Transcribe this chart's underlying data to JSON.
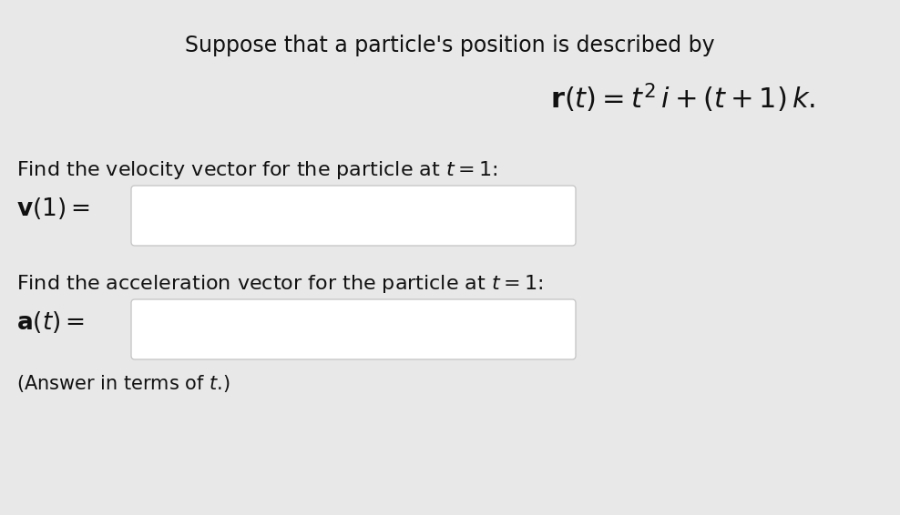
{
  "background_color": "#e8e8e8",
  "text_color": "#111111",
  "box_color": "#ffffff",
  "box_edge_color": "#c8c8c8",
  "title_fontsize": 17,
  "body_fontsize": 16,
  "formula_fontsize": 19,
  "label_fontsize": 19
}
